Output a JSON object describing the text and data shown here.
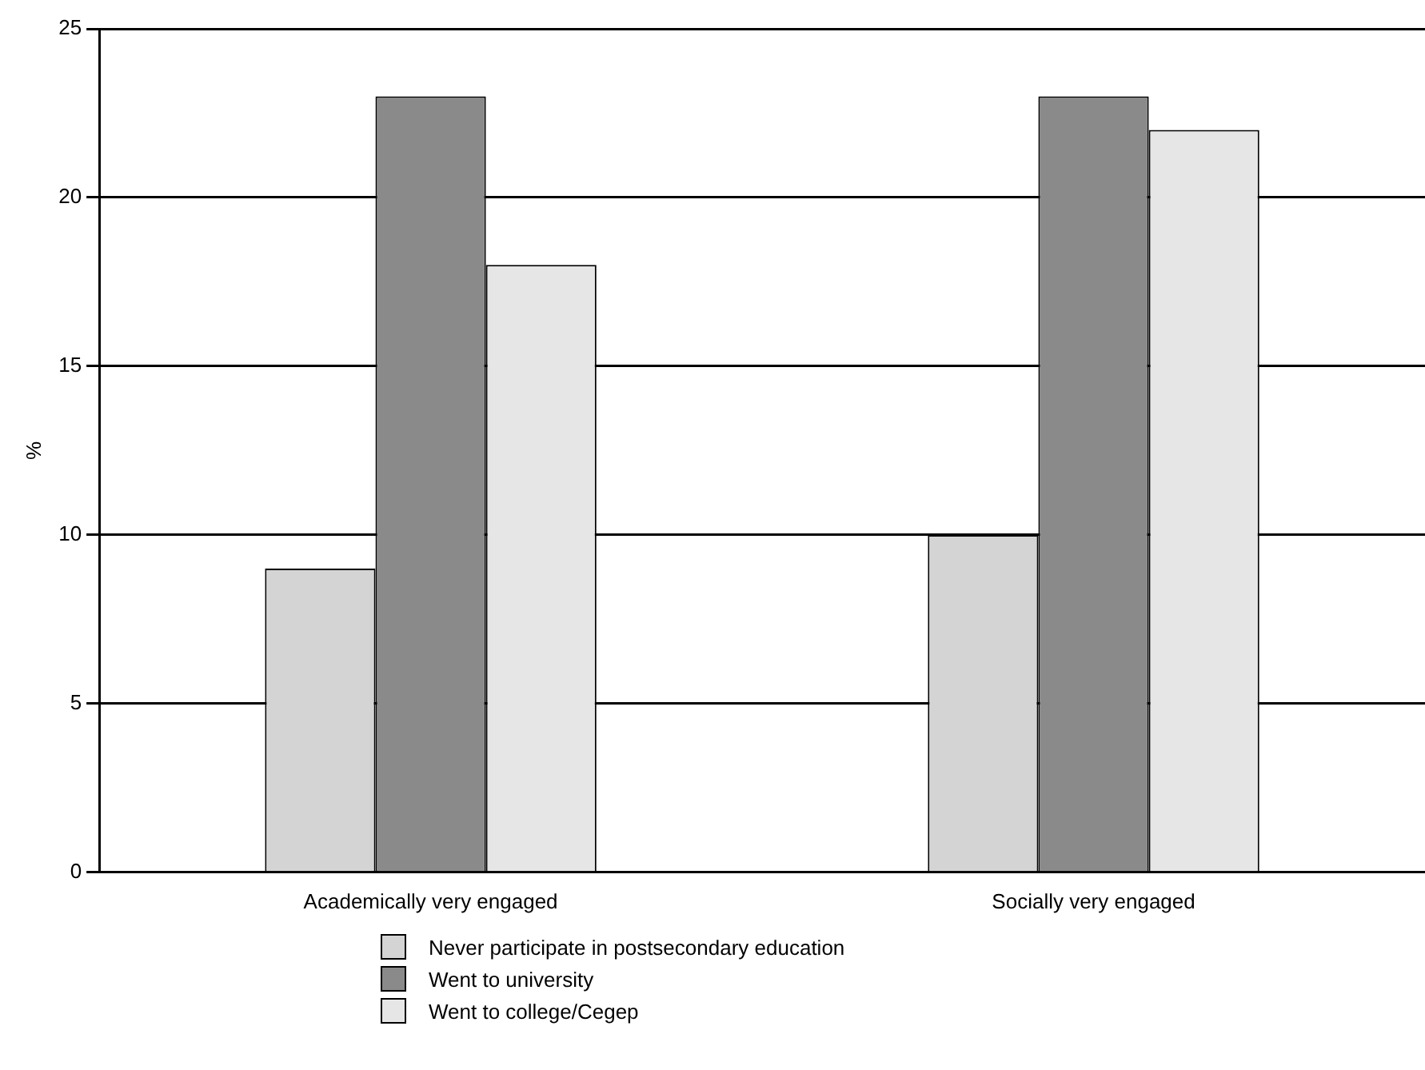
{
  "chart_data": {
    "type": "bar",
    "ylabel": "%",
    "categories": [
      "Academically very engaged",
      "Socially very engaged"
    ],
    "series": [
      {
        "name": "Never participate in postsecondary education",
        "color": "#d4d4d4",
        "values": [
          9,
          10
        ]
      },
      {
        "name": "Went to university",
        "color": "#8a8a8a",
        "values": [
          23,
          23
        ]
      },
      {
        "name": "Went to college/Cegep",
        "color": "#e6e6e6",
        "values": [
          18,
          22
        ]
      }
    ],
    "ylim": [
      0,
      25
    ],
    "yticks": [
      0,
      5,
      10,
      15,
      20,
      25
    ],
    "grid": "y",
    "legend": "bottom"
  }
}
